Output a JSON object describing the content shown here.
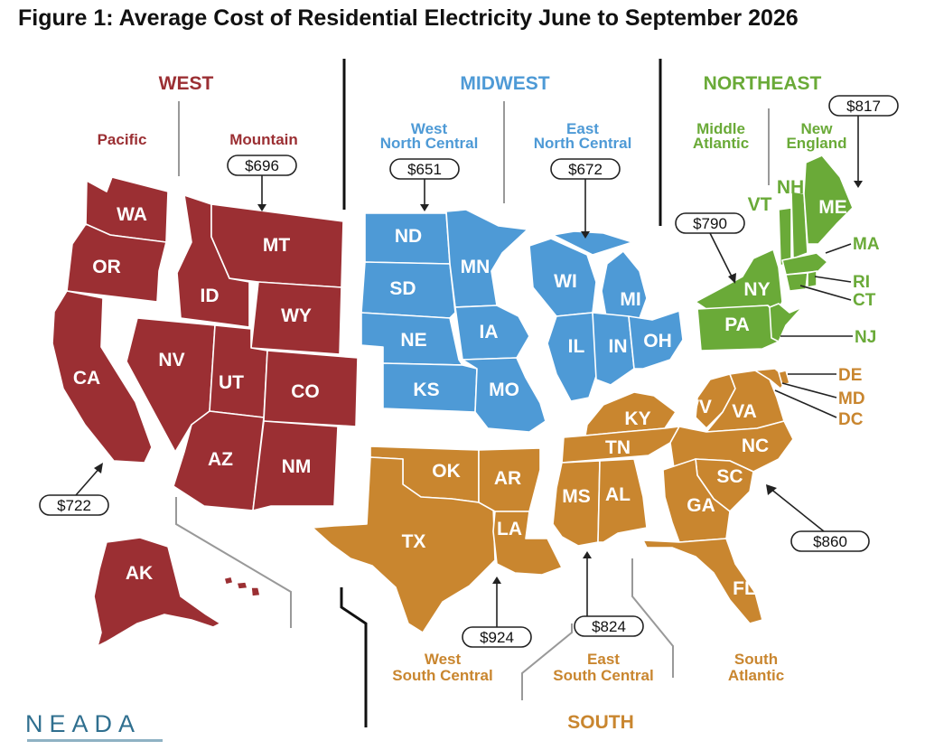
{
  "title": "Figure 1: Average Cost of Residential Electricity June to September 2026",
  "colors": {
    "west": "#9b2f33",
    "midwest": "#4e9ad6",
    "northeast": "#6aaa38",
    "south": "#c9862f"
  },
  "regions": {
    "west": "WEST",
    "midwest": "MIDWEST",
    "northeast": "NORTHEAST",
    "south": "SOUTH"
  },
  "divisions": {
    "pacific": "Pacific",
    "mountain": "Mountain",
    "wnc_1": "West",
    "wnc_2": "North Central",
    "enc_1": "East",
    "enc_2": "North Central",
    "ma_1": "Middle",
    "ma_2": "Atlantic",
    "ne_1": "New",
    "ne_2": "England",
    "wsc_1": "West",
    "wsc_2": "South Central",
    "esc_1": "East",
    "esc_2": "South Central",
    "sa_1": "South",
    "sa_2": "Atlantic"
  },
  "prices": {
    "pacific": "$722",
    "mountain": "$696",
    "west_north_central": "$651",
    "east_north_central": "$672",
    "middle_atlantic": "$790",
    "new_england": "$817",
    "west_south_central": "$924",
    "east_south_central": "$824",
    "south_atlantic": "$860"
  },
  "states": {
    "WA": "WA",
    "OR": "OR",
    "CA": "CA",
    "AK": "AK",
    "HI": "HI",
    "ID": "ID",
    "MT": "MT",
    "WY": "WY",
    "NV": "NV",
    "UT": "UT",
    "CO": "CO",
    "AZ": "AZ",
    "NM": "NM",
    "ND": "ND",
    "SD": "SD",
    "NE": "NE",
    "KS": "KS",
    "MN": "MN",
    "IA": "IA",
    "MO": "MO",
    "WI": "WI",
    "MI": "MI",
    "IL": "IL",
    "IN": "IN",
    "OH": "OH",
    "NY": "NY",
    "PA": "PA",
    "NJ": "NJ",
    "VT": "VT",
    "NH": "NH",
    "ME": "ME",
    "MA": "MA",
    "RI": "RI",
    "CT": "CT",
    "OK": "OK",
    "TX": "TX",
    "AR": "AR",
    "LA": "LA",
    "KY": "KY",
    "TN": "TN",
    "MS": "MS",
    "AL": "AL",
    "DE": "DE",
    "MD": "MD",
    "DC": "DC",
    "WV": "WV",
    "VA": "VA",
    "NC": "NC",
    "SC": "SC",
    "GA": "GA",
    "FL": "FL"
  },
  "logo": "NEADA"
}
